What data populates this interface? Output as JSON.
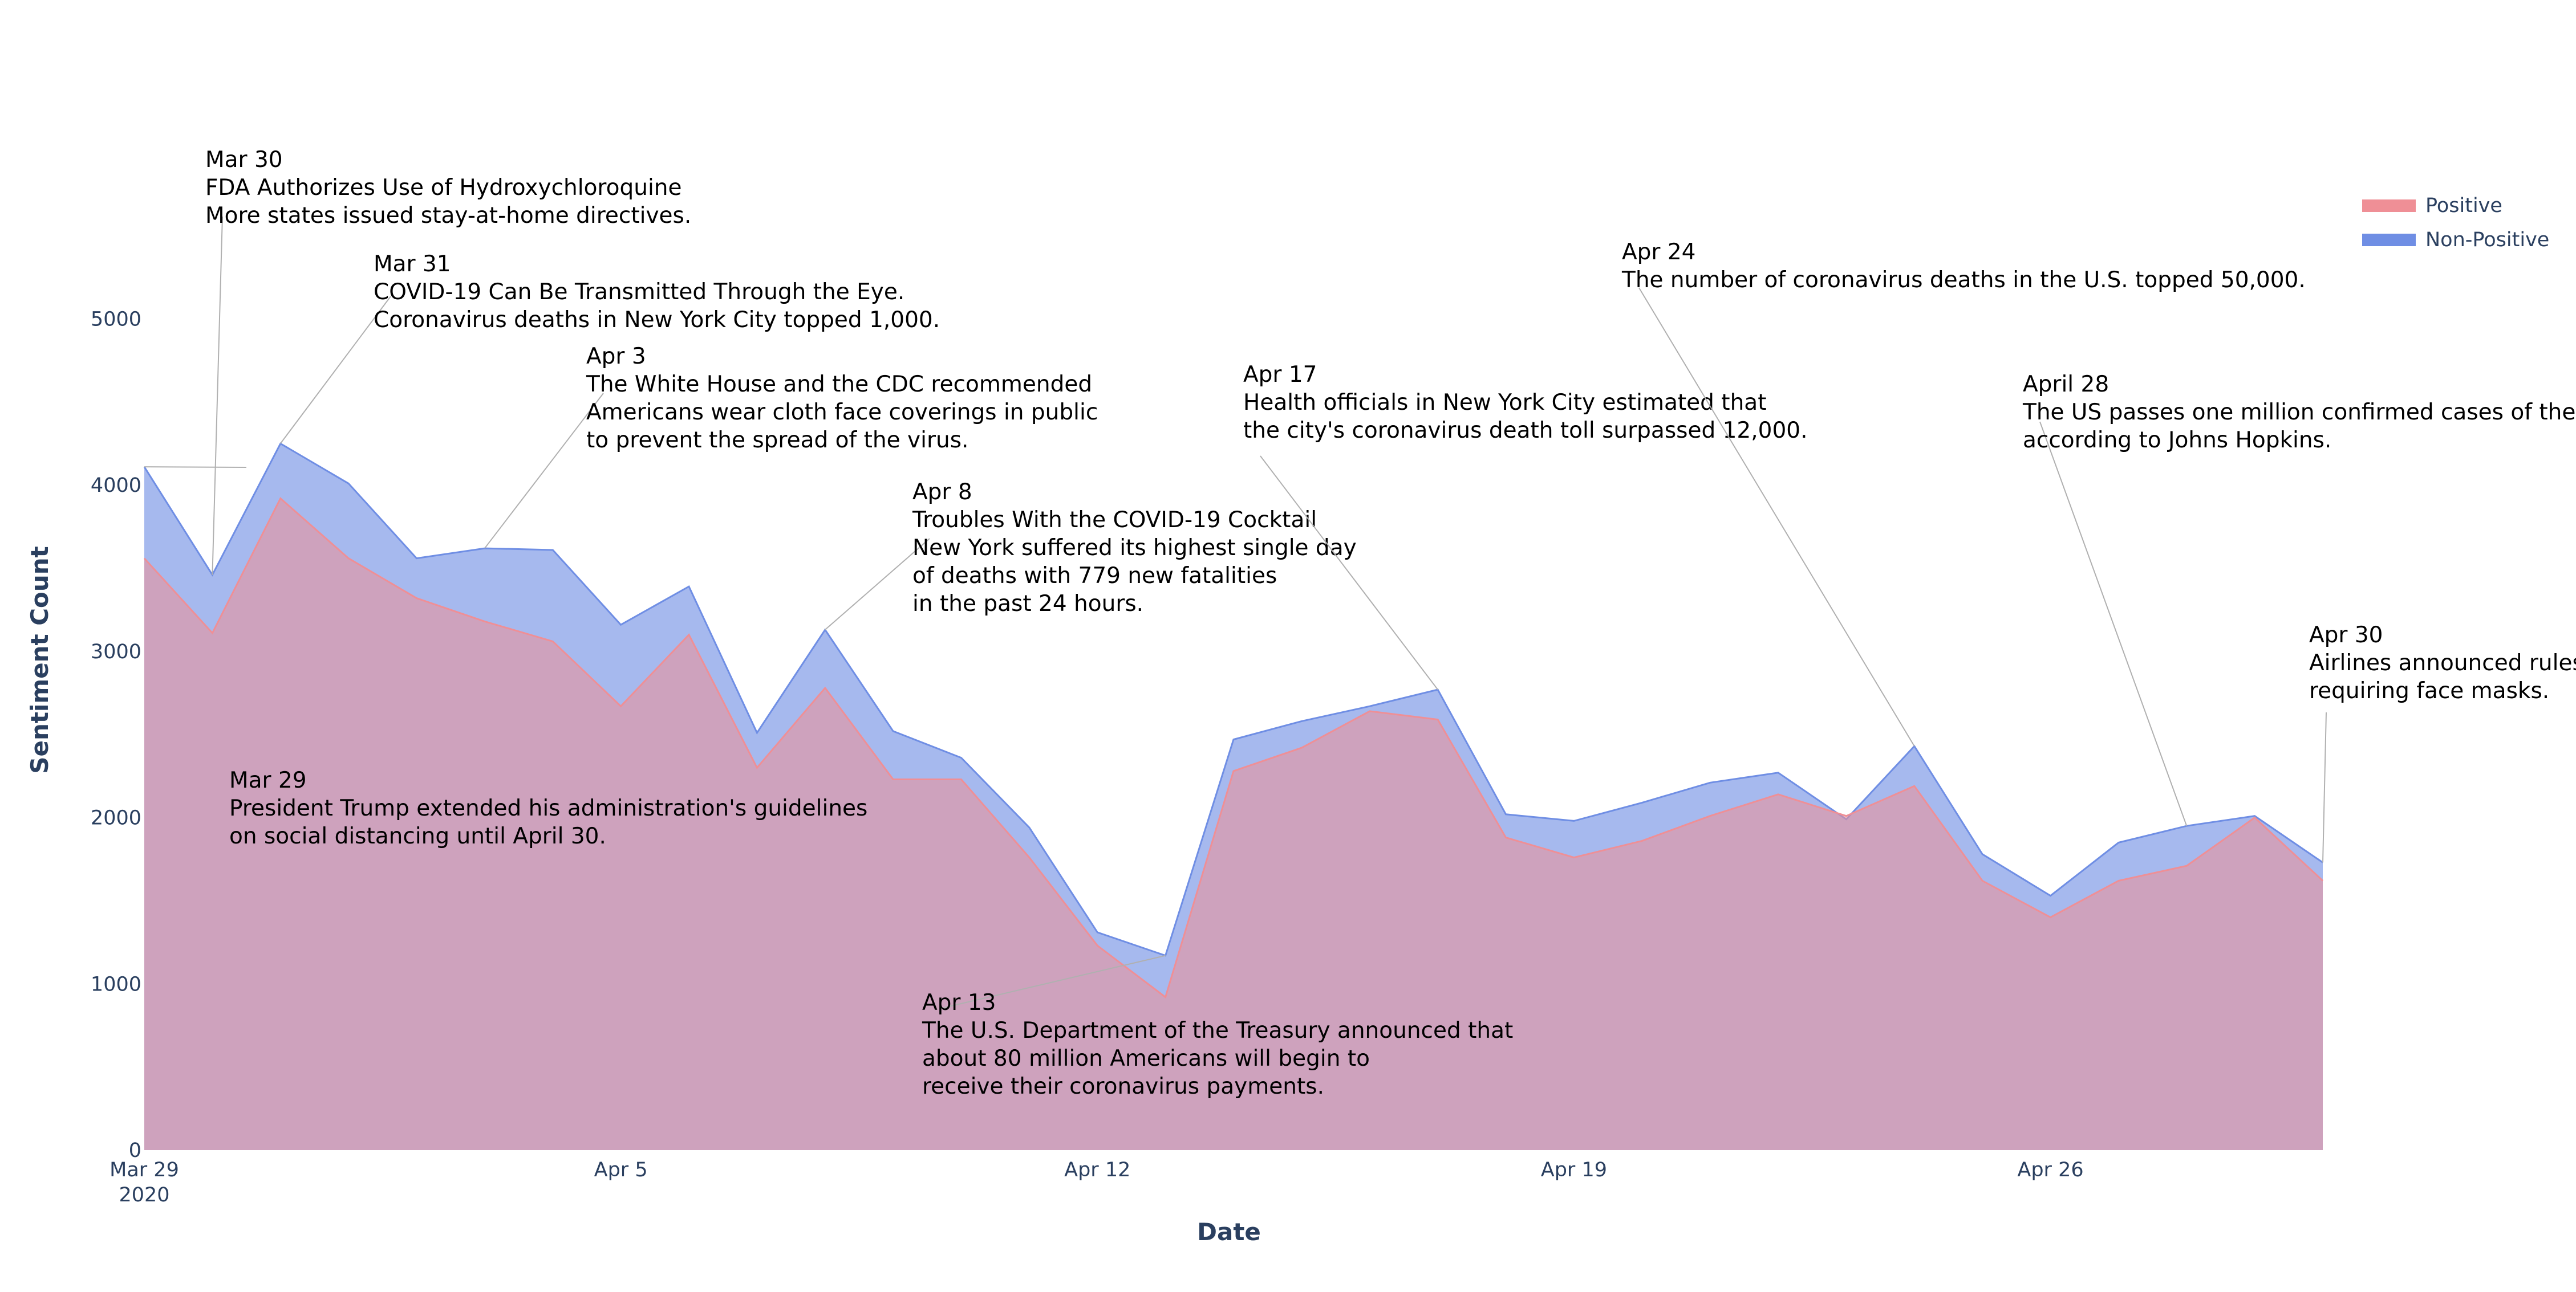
{
  "chart_data": {
    "type": "area",
    "xlabel": "Date",
    "ylabel": "Sentiment Count",
    "x_tick_labels": [
      {
        "date": "2020-03-29",
        "label": "Mar 29",
        "sublabel": "2020"
      },
      {
        "date": "2020-04-05",
        "label": "Apr 5",
        "sublabel": ""
      },
      {
        "date": "2020-04-12",
        "label": "Apr 12",
        "sublabel": ""
      },
      {
        "date": "2020-04-19",
        "label": "Apr 19",
        "sublabel": ""
      },
      {
        "date": "2020-04-26",
        "label": "Apr 26",
        "sublabel": ""
      }
    ],
    "y_ticks": [
      0,
      1000,
      2000,
      3000,
      4000,
      5000
    ],
    "xlim": [
      "2020-03-29",
      "2020-04-30"
    ],
    "ylim": [
      0,
      5300
    ],
    "grid": false,
    "legend_position": "top-right",
    "dates": [
      "2020-03-29",
      "2020-03-30",
      "2020-03-31",
      "2020-04-01",
      "2020-04-02",
      "2020-04-03",
      "2020-04-04",
      "2020-04-05",
      "2020-04-06",
      "2020-04-07",
      "2020-04-08",
      "2020-04-09",
      "2020-04-10",
      "2020-04-11",
      "2020-04-12",
      "2020-04-13",
      "2020-04-14",
      "2020-04-15",
      "2020-04-16",
      "2020-04-17",
      "2020-04-18",
      "2020-04-19",
      "2020-04-20",
      "2020-04-21",
      "2020-04-22",
      "2020-04-23",
      "2020-04-24",
      "2020-04-25",
      "2020-04-26",
      "2020-04-27",
      "2020-04-28",
      "2020-04-29",
      "2020-04-30"
    ],
    "series": [
      {
        "name": "Positive",
        "color": "#ef8f96",
        "values": [
          3560,
          3110,
          3920,
          3560,
          3320,
          3180,
          3060,
          2670,
          3100,
          2300,
          2780,
          2230,
          2230,
          1760,
          1230,
          920,
          2280,
          2420,
          2640,
          2590,
          1880,
          1760,
          1860,
          2010,
          2140,
          2010,
          2190,
          1620,
          1400,
          1620,
          1710,
          2000,
          1620
        ]
      },
      {
        "name": "Non-Positive",
        "color": "#6f8ee4",
        "values": [
          4110,
          3460,
          4250,
          4010,
          3560,
          3620,
          3610,
          3160,
          3390,
          2510,
          3130,
          2520,
          2360,
          1940,
          1310,
          1170,
          2470,
          2580,
          2670,
          2770,
          2020,
          1980,
          2090,
          2210,
          2270,
          1990,
          2430,
          1780,
          1530,
          1850,
          1950,
          2010,
          1730
        ]
      }
    ],
    "annotations": [
      {
        "date": "2020-03-29",
        "lines": [
          "Mar 29",
          "President Trump extended his administration's guidelines",
          "on social distancing until April 30."
        ]
      },
      {
        "date": "2020-03-30",
        "lines": [
          "Mar 30",
          "FDA Authorizes Use of Hydroxychloroquine",
          "More states issued stay-at-home directives."
        ]
      },
      {
        "date": "2020-03-31",
        "lines": [
          "Mar 31",
          "COVID-19 Can Be Transmitted Through the Eye.",
          "Coronavirus deaths in New York City topped 1,000."
        ]
      },
      {
        "date": "2020-04-03",
        "lines": [
          "Apr 3",
          "The White House and the CDC recommended",
          "Americans wear cloth face coverings in public",
          "to prevent the spread of the virus."
        ]
      },
      {
        "date": "2020-04-08",
        "lines": [
          "Apr 8",
          "Troubles With the COVID-19 Cocktail",
          "New York suffered its highest single day",
          "of deaths with 779 new fatalities",
          "in the past 24 hours."
        ]
      },
      {
        "date": "2020-04-13",
        "lines": [
          "Apr 13",
          "The U.S. Department of the Treasury announced that",
          "about 80 million Americans will begin to",
          "receive their coronavirus payments."
        ]
      },
      {
        "date": "2020-04-17",
        "lines": [
          "Apr 17",
          "Health officials in New York City estimated that",
          "the city's coronavirus death toll surpassed 12,000."
        ]
      },
      {
        "date": "2020-04-24",
        "lines": [
          "Apr 24",
          "The number of coronavirus deaths in the U.S. topped 50,000."
        ]
      },
      {
        "date": "2020-04-28",
        "lines": [
          "April 28",
          "The US passes one million confirmed cases of the virus",
          " according to Johns Hopkins."
        ]
      },
      {
        "date": "2020-04-30",
        "lines": [
          "Apr 30",
          "Airlines announced rules",
          " requiring face masks."
        ]
      }
    ]
  }
}
